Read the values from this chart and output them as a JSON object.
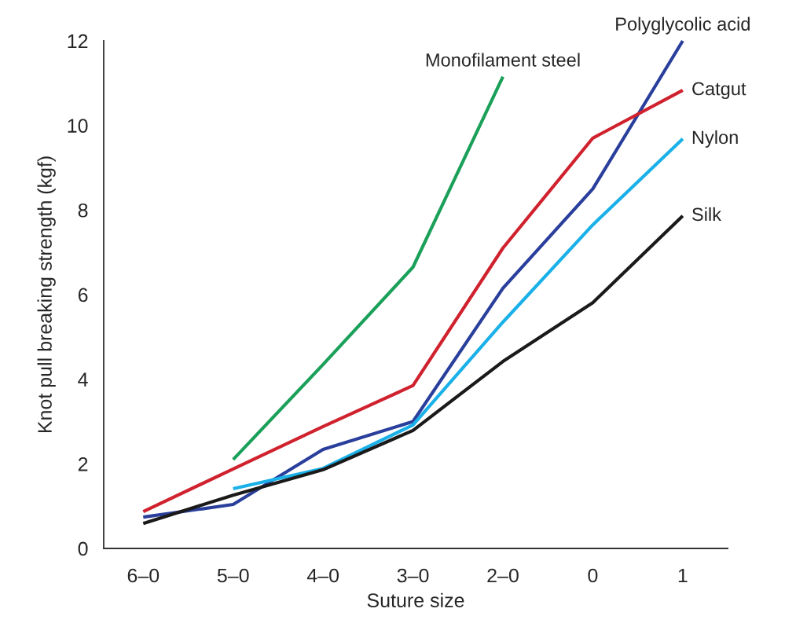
{
  "chart_data": {
    "type": "line",
    "xlabel": "Suture size",
    "ylabel": "Knot pull breaking strength (kgf)",
    "categories": [
      "6–0",
      "5–0",
      "4–0",
      "3–0",
      "2–0",
      "0",
      "1"
    ],
    "ylim": [
      0,
      12
    ],
    "yticks": [
      0,
      2,
      4,
      6,
      8,
      10,
      12
    ],
    "grid": false,
    "legend": false,
    "marker": "none",
    "line_style": "solid",
    "series": [
      {
        "name": "Monofilament steel",
        "color": "#1ba05a",
        "values": [
          null,
          2.1,
          4.35,
          6.65,
          11.15,
          null,
          null
        ]
      },
      {
        "name": "Polyglycolic acid",
        "color": "#2a3f9c",
        "values": [
          0.74,
          1.04,
          2.34,
          3.0,
          6.15,
          8.5,
          12.0
        ]
      },
      {
        "name": "Catgut",
        "color": "#d0222e",
        "values": [
          0.87,
          1.88,
          2.88,
          3.85,
          7.1,
          9.7,
          10.83
        ]
      },
      {
        "name": "Nylon",
        "color": "#1ab0e8",
        "values": [
          null,
          1.41,
          1.89,
          2.92,
          5.35,
          7.65,
          9.68
        ]
      },
      {
        "name": "Silk",
        "color": "#1a1a1a",
        "values": [
          0.59,
          1.26,
          1.86,
          2.79,
          4.42,
          5.81,
          7.86
        ]
      }
    ]
  }
}
